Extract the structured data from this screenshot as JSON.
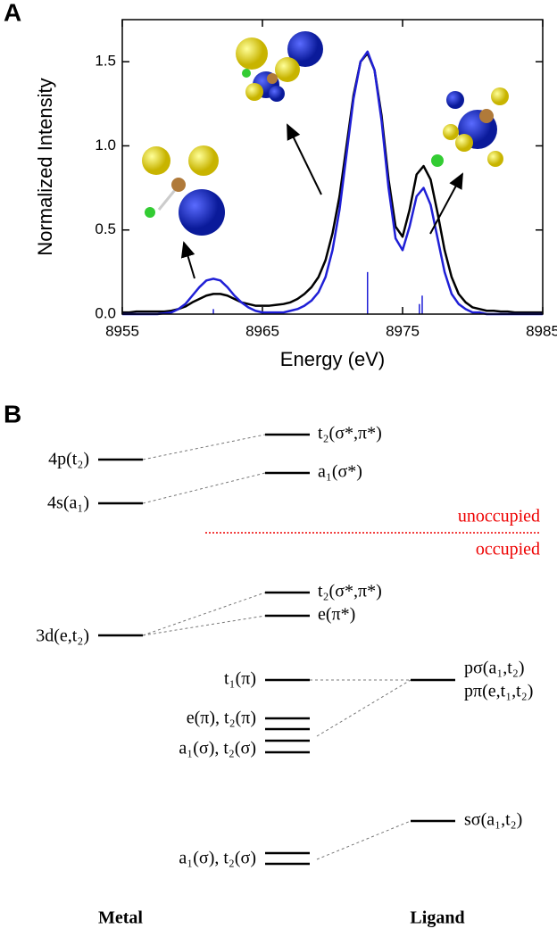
{
  "panel_labels": [
    "A",
    "B"
  ],
  "chart_data": {
    "type": "line",
    "x_label": "Energy (eV)",
    "y_label": "Normalized Intensity",
    "xlim": [
      8955,
      8985
    ],
    "ylim": [
      0,
      1.75
    ],
    "xticks": [
      8955,
      8965,
      8975,
      8985
    ],
    "yticks": [
      {
        "value": 0,
        "label": "0.0"
      },
      0.5,
      {
        "value": 1,
        "label": "1.0"
      },
      1.5
    ],
    "x": [
      8955,
      8955.5,
      8956,
      8956.5,
      8957,
      8957.5,
      8958,
      8958.5,
      8959,
      8959.5,
      8960,
      8960.5,
      8961,
      8961.5,
      8962,
      8962.5,
      8963,
      8963.5,
      8964,
      8964.5,
      8965,
      8965.5,
      8966,
      8966.5,
      8967,
      8967.5,
      8968,
      8968.5,
      8969,
      8969.5,
      8970,
      8970.5,
      8971,
      8971.5,
      8972,
      8972.5,
      8973,
      8973.5,
      8974,
      8974.5,
      8975,
      8975.5,
      8976,
      8976.5,
      8977,
      8977.5,
      8978,
      8978.5,
      8979,
      8979.5,
      8980,
      8980.5,
      8981,
      8981.5,
      8982,
      8982.5,
      8983,
      8983.5,
      8984,
      8984.5,
      8985
    ],
    "series": [
      {
        "color": "#000000",
        "values": [
          0.01,
          0.01,
          0.015,
          0.015,
          0.015,
          0.015,
          0.015,
          0.02,
          0.03,
          0.045,
          0.07,
          0.09,
          0.11,
          0.12,
          0.12,
          0.11,
          0.09,
          0.07,
          0.06,
          0.05,
          0.05,
          0.05,
          0.055,
          0.06,
          0.07,
          0.09,
          0.12,
          0.16,
          0.22,
          0.32,
          0.48,
          0.7,
          1.0,
          1.3,
          1.5,
          1.55,
          1.45,
          1.18,
          0.8,
          0.52,
          0.46,
          0.62,
          0.83,
          0.88,
          0.8,
          0.6,
          0.38,
          0.22,
          0.12,
          0.07,
          0.04,
          0.03,
          0.02,
          0.02,
          0.015,
          0.015,
          0.01,
          0.01,
          0.01,
          0.01,
          0.01
        ]
      },
      {
        "color": "#1f1fd6",
        "values": [
          0,
          0,
          0,
          0,
          0,
          0,
          0.005,
          0.01,
          0.03,
          0.06,
          0.11,
          0.16,
          0.2,
          0.21,
          0.2,
          0.16,
          0.11,
          0.07,
          0.04,
          0.02,
          0.01,
          0.01,
          0.01,
          0.01,
          0.02,
          0.03,
          0.05,
          0.08,
          0.13,
          0.22,
          0.38,
          0.62,
          0.95,
          1.28,
          1.5,
          1.56,
          1.45,
          1.15,
          0.75,
          0.45,
          0.38,
          0.52,
          0.7,
          0.75,
          0.65,
          0.45,
          0.25,
          0.12,
          0.06,
          0.03,
          0.01,
          0.01,
          0,
          0,
          0,
          0,
          0,
          0,
          0,
          0,
          0
        ]
      }
    ],
    "sticks": {
      "color": "#1f1fd6",
      "x": [
        8961.5,
        8972.5,
        8976.2,
        8976.4
      ],
      "values": [
        0.03,
        0.25,
        0.06,
        0.11
      ]
    }
  },
  "diagram": {
    "metal": [
      "4p(t₂)",
      "4s(a₁)",
      "3d(e,t₂)"
    ],
    "molecular": [
      "t₂(σ*,π*)",
      "a₁(σ*)",
      "t₂(σ*,π*)",
      "e(π*)",
      "t₁(π)",
      "e(π), t₂(π)",
      "a₁(σ), t₂(σ)",
      "a₁(σ), t₂(σ)"
    ],
    "ligand": [
      "pσ(a₁,t₂)",
      "pπ(e,t₁,t₂)",
      "sσ(a₁,t₂)"
    ],
    "separator": {
      "above": "unoccupied",
      "below": "occupied"
    },
    "columns": [
      "Metal",
      "Ligand"
    ]
  }
}
